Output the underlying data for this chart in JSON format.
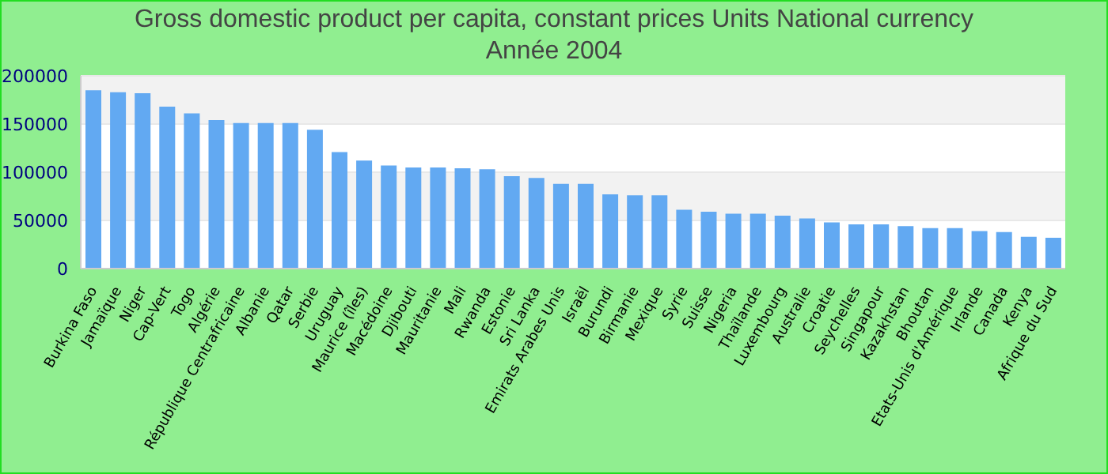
{
  "chart_data": {
    "type": "bar",
    "title": "Gross domestic product per capita, constant prices Units National currency",
    "subtitle": "Année 2004",
    "categories": [
      "Burkina Faso",
      "Jamaïque",
      "Niger",
      "Cap-Vert",
      "Togo",
      "Algérie",
      "République Centrafricaine",
      "Albanie",
      "Qatar",
      "Serbie",
      "Uruguay",
      "Maurice (îles)",
      "Macédoine",
      "Djibouti",
      "Mauritanie",
      "Mali",
      "Rwanda",
      "Estonie",
      "Sri Lanka",
      "Emirats Arabes Unis",
      "Israël",
      "Burundi",
      "Birmanie",
      "Mexique",
      "Syrie",
      "Suisse",
      "Nigeria",
      "Thaïlande",
      "Luxembourg",
      "Australie",
      "Croatie",
      "Seychelles",
      "Singapour",
      "Kazakhstan",
      "Bhoutan",
      "Etats-Unis d'Amérique",
      "Irlande",
      "Canada",
      "Kenya",
      "Afrique du Sud"
    ],
    "values": [
      185000,
      183000,
      182000,
      168000,
      161000,
      154000,
      151000,
      151000,
      151000,
      144000,
      121000,
      112000,
      107000,
      105000,
      105000,
      104000,
      103000,
      96000,
      94000,
      88000,
      88000,
      77000,
      76000,
      76000,
      61000,
      59000,
      57000,
      57000,
      55000,
      52000,
      48000,
      46000,
      46000,
      44000,
      42000,
      42000,
      39000,
      38000,
      33000,
      32000
    ],
    "color": "#62a9f2",
    "ylim": [
      0,
      200000
    ],
    "yticks": [
      0,
      50000,
      100000,
      150000,
      200000
    ],
    "grid": "y"
  }
}
